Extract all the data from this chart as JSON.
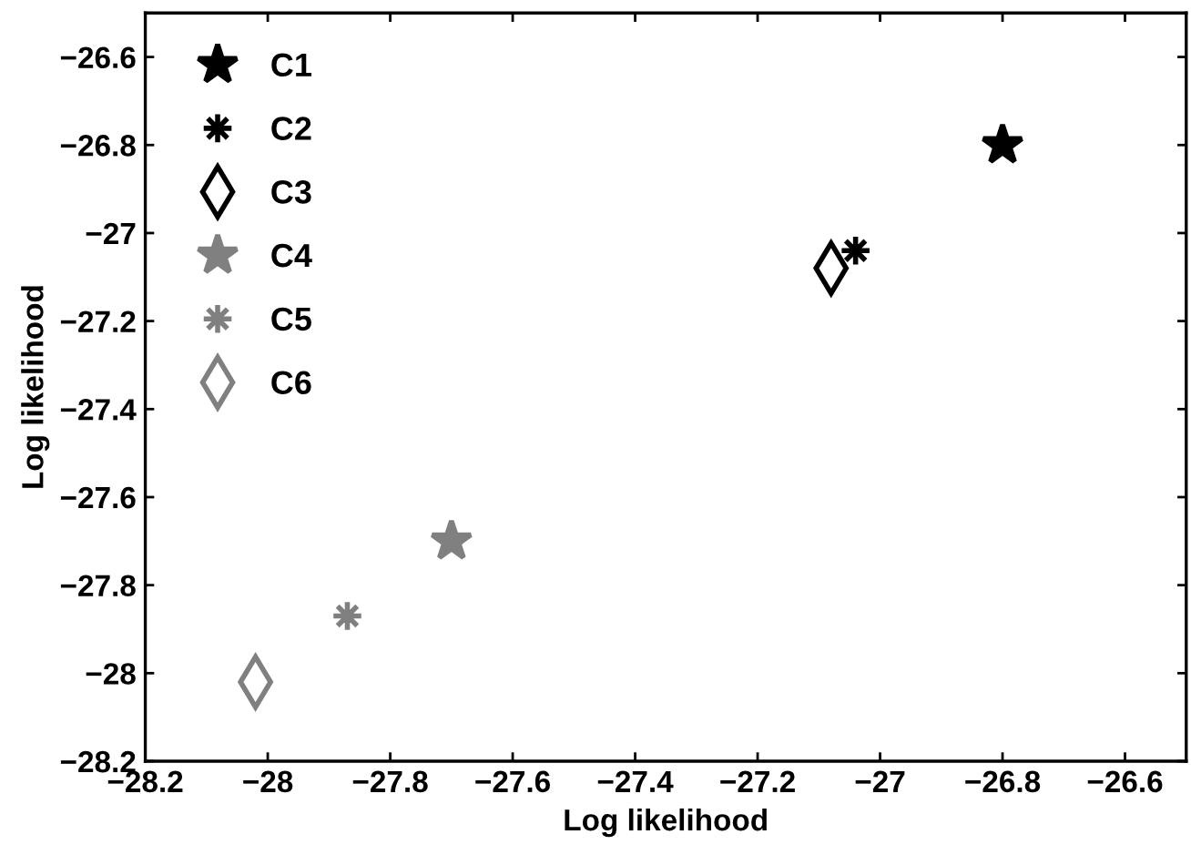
{
  "chart_data": {
    "type": "scatter",
    "xlabel": "Log likelihood",
    "ylabel": "Log likelihood",
    "xlim": [
      -28.2,
      -26.5
    ],
    "xticks": [
      -28.2,
      -28,
      -27.8,
      -27.6,
      -27.4,
      -27.2,
      -27,
      -26.8,
      -26.6
    ],
    "ylim": [
      -28.2,
      -26.5
    ],
    "yticks": [
      -28.2,
      -28,
      -27.8,
      -27.6,
      -27.4,
      -27.2,
      -27,
      -26.8,
      -26.6
    ],
    "grid": false,
    "legend": "top left",
    "series": [
      {
        "name": "C1",
        "color": "#000000",
        "marker": "star",
        "x": [
          -26.8
        ],
        "values": [
          -26.8
        ]
      },
      {
        "name": "C2",
        "color": "#000000",
        "marker": "cross",
        "x": [
          -27.04
        ],
        "values": [
          -27.04
        ]
      },
      {
        "name": "C3",
        "color": "#000000",
        "marker": "diamond",
        "x": [
          -27.08
        ],
        "values": [
          -27.08
        ]
      },
      {
        "name": "C4",
        "color": "#808080",
        "marker": "star",
        "x": [
          -27.7
        ],
        "values": [
          -27.7
        ]
      },
      {
        "name": "C5",
        "color": "#808080",
        "marker": "cross",
        "x": [
          -27.87
        ],
        "values": [
          -27.87
        ]
      },
      {
        "name": "C6",
        "color": "#808080",
        "marker": "diamond",
        "x": [
          -28.02
        ],
        "values": [
          -28.02
        ]
      }
    ]
  }
}
